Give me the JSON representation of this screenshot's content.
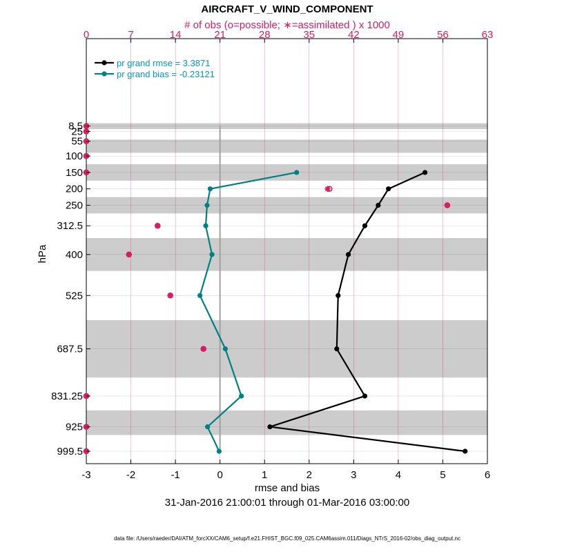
{
  "chart_data": {
    "type": "line",
    "title": "AIRCRAFT_V_WIND_COMPONENT",
    "top_axis_label": "# of obs (o=possible; ∗=assimilated ) x 1000",
    "top_ticks": [
      "0",
      "7",
      "14",
      "21",
      "28",
      "35",
      "42",
      "49",
      "56",
      "63"
    ],
    "top_range": [
      0,
      63
    ],
    "xlabel": "rmse and bias",
    "xlim": [
      -3,
      6
    ],
    "x_ticks": [
      "-3",
      "-2",
      "-1",
      "0",
      "1",
      "2",
      "3",
      "4",
      "5",
      "6"
    ],
    "ylabel": "hPa",
    "y_ticks": [
      "8.5",
      "25",
      "55",
      "100",
      "150",
      "200",
      "250",
      "312.5",
      "400",
      "525",
      "687.5",
      "831.25",
      "925",
      "999.5"
    ],
    "y_levels": [
      8.5,
      25,
      55,
      100,
      150,
      200,
      250,
      312.5,
      400,
      525,
      687.5,
      831.25,
      925,
      999.5
    ],
    "shaded_layers": [
      [
        0,
        18
      ],
      [
        50,
        90
      ],
      [
        125,
        175
      ],
      [
        225,
        275
      ],
      [
        350,
        450
      ],
      [
        600,
        775
      ],
      [
        875,
        950
      ]
    ],
    "date_range": "31-Jan-2016 21:00:01 through 01-Mar-2016 03:00:00",
    "footnote": "data file: /Users/raeder/DAI/ATM_forcXX/CAM6_setup/f.e21.FHIST_BGC.f09_025.CAM6assim.011/Diags_NTrS_2016-02/obs_diag_output.nc",
    "legend": {
      "rmse": "pr grand rmse = 3.3871",
      "bias": "pr grand bias = -0.23121",
      "position": "top-left"
    },
    "series": [
      {
        "name": "rmse",
        "color": "#000000",
        "levels": [
          150,
          200,
          250,
          312.5,
          400,
          525,
          687.5,
          831.25,
          925,
          999.5
        ],
        "values": [
          4.6,
          3.78,
          3.55,
          3.25,
          2.88,
          2.65,
          2.62,
          3.25,
          1.12,
          5.5
        ]
      },
      {
        "name": "bias",
        "color": "#008080",
        "levels": [
          150,
          200,
          250,
          312.5,
          400,
          525,
          687.5,
          831.25,
          925,
          999.5
        ],
        "values": [
          1.72,
          -0.22,
          -0.29,
          -0.32,
          -0.18,
          -0.45,
          0.12,
          0.48,
          -0.28,
          -0.02
        ]
      }
    ],
    "obs_possible": {
      "color": "#d81b60",
      "levels": [
        8.5,
        25,
        55,
        100,
        150,
        200,
        250,
        312.5,
        400,
        525,
        687.5,
        831.25,
        925,
        999.5
      ],
      "values": [
        0,
        0,
        0,
        0,
        0,
        38.2,
        56.7,
        11.2,
        6.7,
        13.2,
        18.4,
        0,
        0,
        0
      ]
    },
    "obs_assimilated": {
      "color": "#d81b60",
      "levels": [
        8.5,
        25,
        55,
        100,
        150,
        200,
        250,
        312.5,
        400,
        525,
        687.5,
        831.25,
        925,
        999.5
      ],
      "values": [
        0,
        0,
        0,
        0,
        0,
        37.9,
        56.7,
        11.2,
        6.7,
        13.2,
        18.4,
        0,
        0,
        0
      ]
    },
    "zero_line": 0
  }
}
